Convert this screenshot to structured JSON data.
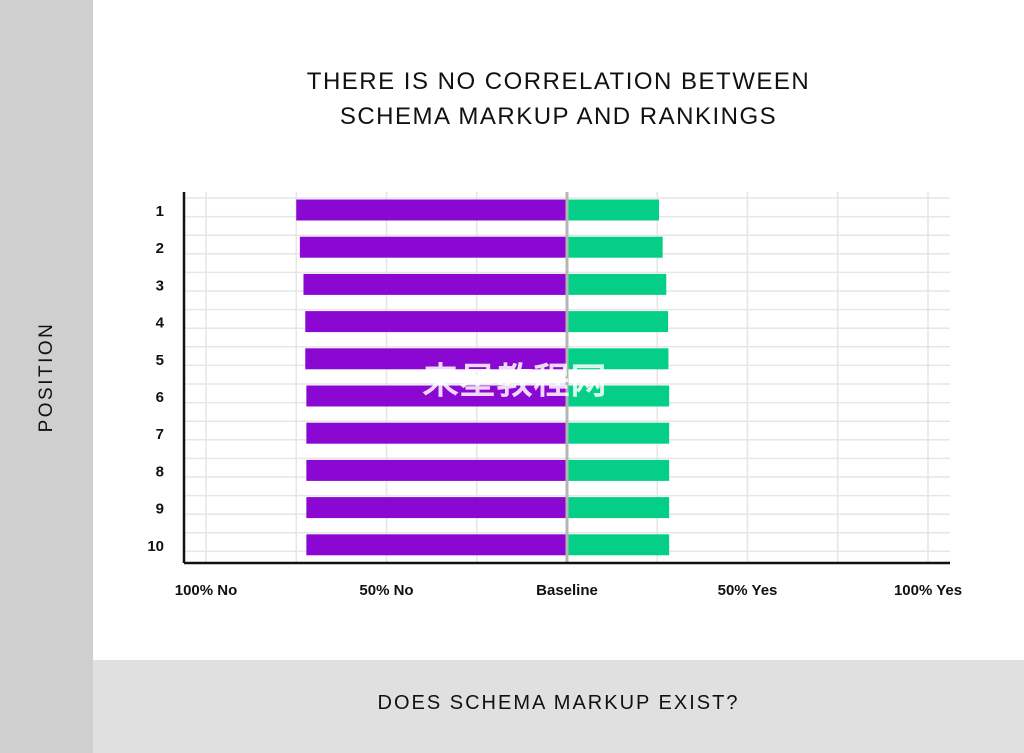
{
  "chart_data": {
    "type": "bar",
    "orientation": "horizontal-diverging",
    "title_lines": [
      "THERE IS NO CORRELATION BETWEEN",
      "SCHEMA MARKUP AND RANKINGS"
    ],
    "xlabel": "DOES SCHEMA MARKUP EXIST?",
    "ylabel": "POSITION",
    "categories": [
      "1",
      "2",
      "3",
      "4",
      "5",
      "6",
      "7",
      "8",
      "9",
      "10"
    ],
    "x_ticks": [
      -100,
      -50,
      0,
      50,
      100
    ],
    "x_tick_labels": [
      "100% No",
      "50% No",
      "Baseline",
      "50% Yes",
      "100% Yes"
    ],
    "xlim": [
      -100,
      100
    ],
    "grid": true,
    "series": [
      {
        "values": [
          -75,
          -74,
          -73,
          -72.5,
          -72.5,
          -72.2,
          -72.2,
          -72.2,
          -72.2,
          -72.2
        ]
      },
      {
        "values": [
          25.5,
          26.5,
          27.5,
          28,
          28.1,
          28.3,
          28.3,
          28.3,
          28.3,
          28.3
        ]
      }
    ],
    "colors": {
      "no": "#8a08d1",
      "yes": "#05cf86",
      "baseline": "#b5b5b5",
      "grid": "#e6e6e6",
      "axis": "#111111"
    }
  },
  "watermark": "来星教程网"
}
